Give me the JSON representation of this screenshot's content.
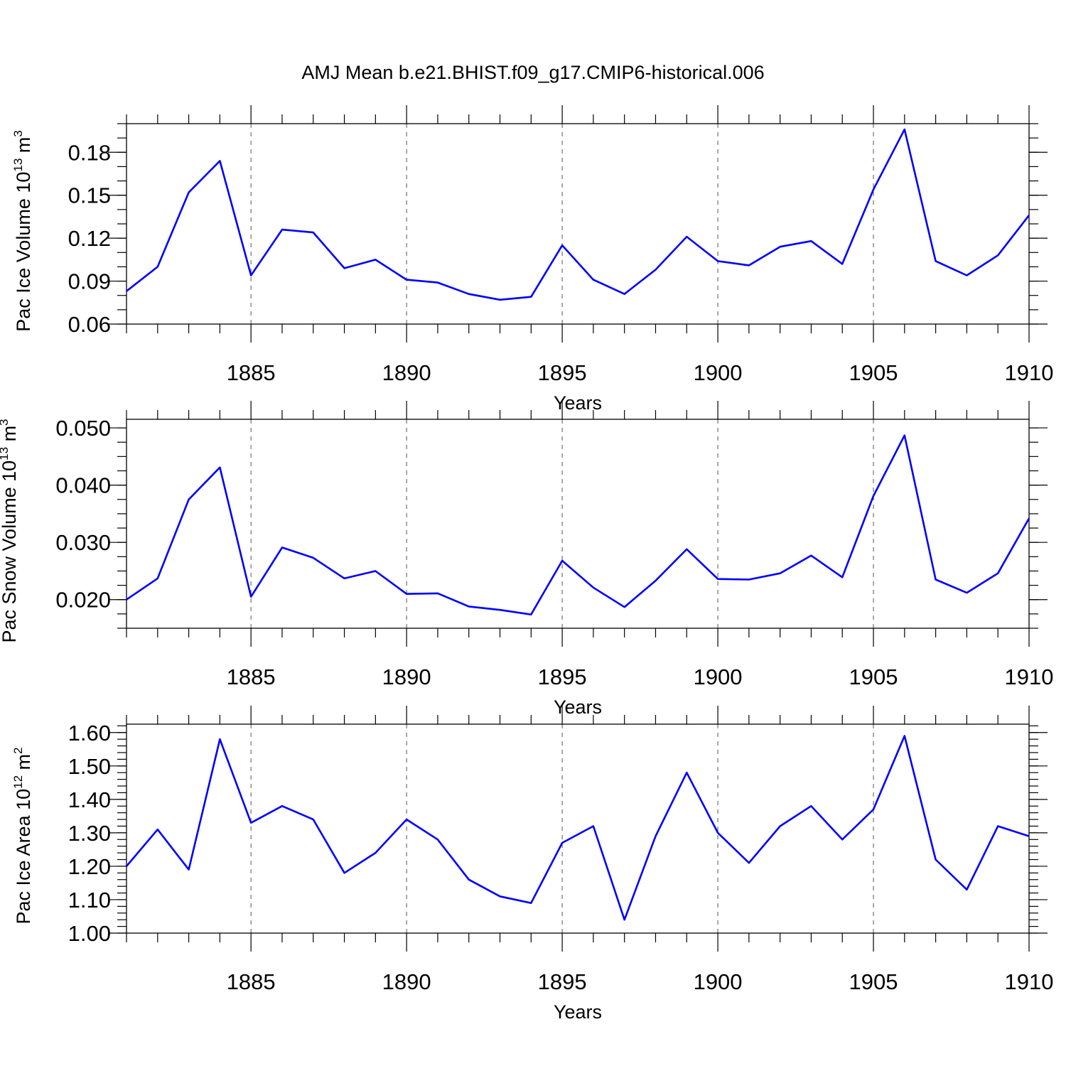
{
  "title": "AMJ Mean b.e21.BHIST.f09_g17.CMIP6-historical.006",
  "chart_data": [
    {
      "type": "line",
      "ylabel_main": "Pac Ice Volume 10",
      "ylabel_exp": "13",
      "ylabel_unit": " m",
      "ylabel_unit_exp": "3",
      "xlabel": "Years",
      "xlim": [
        1881,
        1910
      ],
      "ylim": [
        0.06,
        0.2
      ],
      "ytick_values": [
        0.06,
        0.09,
        0.12,
        0.15,
        0.18
      ],
      "ytick_labels": [
        "0.06",
        "0.09",
        "0.12",
        "0.15",
        "0.18"
      ],
      "yminor_step": 0.01,
      "xtick_values": [
        1885,
        1890,
        1895,
        1900,
        1905,
        1910
      ],
      "xtick_labels": [
        "1885",
        "1890",
        "1895",
        "1900",
        "1905",
        "1910"
      ],
      "grid_x": true,
      "series": [
        {
          "name": "Pac Ice Volume",
          "color": "#0000ff",
          "x": [
            1881,
            1882,
            1883,
            1884,
            1885,
            1886,
            1887,
            1888,
            1889,
            1890,
            1891,
            1892,
            1893,
            1894,
            1895,
            1896,
            1897,
            1898,
            1899,
            1900,
            1901,
            1902,
            1903,
            1904,
            1905,
            1906,
            1907,
            1908,
            1909,
            1910
          ],
          "values": [
            0.083,
            0.1,
            0.152,
            0.174,
            0.094,
            0.126,
            0.124,
            0.099,
            0.105,
            0.091,
            0.089,
            0.081,
            0.077,
            0.079,
            0.115,
            0.091,
            0.081,
            0.098,
            0.121,
            0.104,
            0.101,
            0.114,
            0.118,
            0.102,
            0.154,
            0.196,
            0.104,
            0.094,
            0.108,
            0.136
          ]
        }
      ]
    },
    {
      "type": "line",
      "ylabel_main": "Pac Snow Volume 10",
      "ylabel_exp": "13",
      "ylabel_unit": " m",
      "ylabel_unit_exp": "3",
      "xlabel": "Years",
      "xlim": [
        1881,
        1910
      ],
      "ylim": [
        0.015,
        0.0515
      ],
      "ytick_values": [
        0.02,
        0.03,
        0.04,
        0.05
      ],
      "ytick_labels": [
        "0.020",
        "0.030",
        "0.040",
        "0.050"
      ],
      "yminor_step": 0.0025,
      "xtick_values": [
        1885,
        1890,
        1895,
        1900,
        1905,
        1910
      ],
      "xtick_labels": [
        "1885",
        "1890",
        "1895",
        "1900",
        "1905",
        "1910"
      ],
      "grid_x": true,
      "series": [
        {
          "name": "Pac Snow Volume",
          "color": "#0000ff",
          "x": [
            1881,
            1882,
            1883,
            1884,
            1885,
            1886,
            1887,
            1888,
            1889,
            1890,
            1891,
            1892,
            1893,
            1894,
            1895,
            1896,
            1897,
            1898,
            1899,
            1900,
            1901,
            1902,
            1903,
            1904,
            1905,
            1906,
            1907,
            1908,
            1909,
            1910
          ],
          "values": [
            0.02,
            0.0237,
            0.0375,
            0.0431,
            0.0205,
            0.0291,
            0.0273,
            0.0237,
            0.025,
            0.021,
            0.0211,
            0.0188,
            0.0182,
            0.0174,
            0.0268,
            0.0221,
            0.0187,
            0.0233,
            0.0288,
            0.0236,
            0.0235,
            0.0246,
            0.0277,
            0.0239,
            0.0381,
            0.0487,
            0.0235,
            0.0212,
            0.0246,
            0.0342
          ]
        }
      ]
    },
    {
      "type": "line",
      "ylabel_main": "Pac Ice Area 10",
      "ylabel_exp": "12",
      "ylabel_unit": " m",
      "ylabel_unit_exp": "2",
      "xlabel": "Years",
      "xlim": [
        1881,
        1910
      ],
      "ylim": [
        1.0,
        1.625
      ],
      "ytick_values": [
        1.0,
        1.1,
        1.2,
        1.3,
        1.4,
        1.5,
        1.6
      ],
      "ytick_labels": [
        "1.00",
        "1.10",
        "1.20",
        "1.30",
        "1.40",
        "1.50",
        "1.60"
      ],
      "yminor_step": 0.02,
      "xtick_values": [
        1885,
        1890,
        1895,
        1900,
        1905,
        1910
      ],
      "xtick_labels": [
        "1885",
        "1890",
        "1895",
        "1900",
        "1905",
        "1910"
      ],
      "grid_x": true,
      "series": [
        {
          "name": "Pac Ice Area",
          "color": "#0000ff",
          "x": [
            1881,
            1882,
            1883,
            1884,
            1885,
            1886,
            1887,
            1888,
            1889,
            1890,
            1891,
            1892,
            1893,
            1894,
            1895,
            1896,
            1897,
            1898,
            1899,
            1900,
            1901,
            1902,
            1903,
            1904,
            1905,
            1906,
            1907,
            1908,
            1909,
            1910
          ],
          "values": [
            1.2,
            1.31,
            1.19,
            1.58,
            1.33,
            1.38,
            1.34,
            1.18,
            1.24,
            1.34,
            1.28,
            1.16,
            1.11,
            1.09,
            1.27,
            1.32,
            1.04,
            1.29,
            1.48,
            1.3,
            1.21,
            1.32,
            1.38,
            1.28,
            1.37,
            1.59,
            1.22,
            1.13,
            1.32,
            1.29
          ]
        }
      ]
    }
  ]
}
